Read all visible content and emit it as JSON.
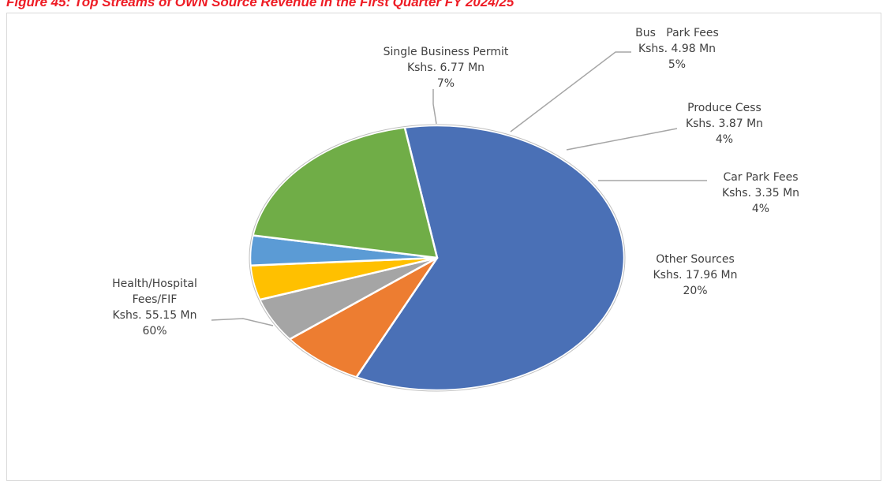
{
  "figure": {
    "title": "Figure 45: Top Streams of OWN Source Revenue in the First Quarter FY 2024/25"
  },
  "chart_data": {
    "type": "pie",
    "title": "",
    "slices": [
      {
        "label": "Health/Hospital Fees/FIF",
        "amount": "Kshs. 55.15 Mn",
        "value": 55.15,
        "percent": "60%",
        "color": "#4a70b6"
      },
      {
        "label": "Single Business Permit",
        "amount": "Kshs. 6.77 Mn",
        "value": 6.77,
        "percent": "7%",
        "color": "#ed7d31"
      },
      {
        "label": "Bus   Park Fees",
        "amount": "Kshs. 4.98 Mn",
        "value": 4.98,
        "percent": "5%",
        "color": "#a5a5a5"
      },
      {
        "label": "Produce Cess",
        "amount": "Kshs. 3.87 Mn",
        "value": 3.87,
        "percent": "4%",
        "color": "#ffc000"
      },
      {
        "label": "Car Park Fees",
        "amount": "Kshs. 3.35 Mn",
        "value": 3.35,
        "percent": "4%",
        "color": "#5b9bd5"
      },
      {
        "label": "Other Sources",
        "amount": "Kshs. 17.96 Mn",
        "value": 17.96,
        "percent": "20%",
        "color": "#70ad47"
      }
    ]
  }
}
